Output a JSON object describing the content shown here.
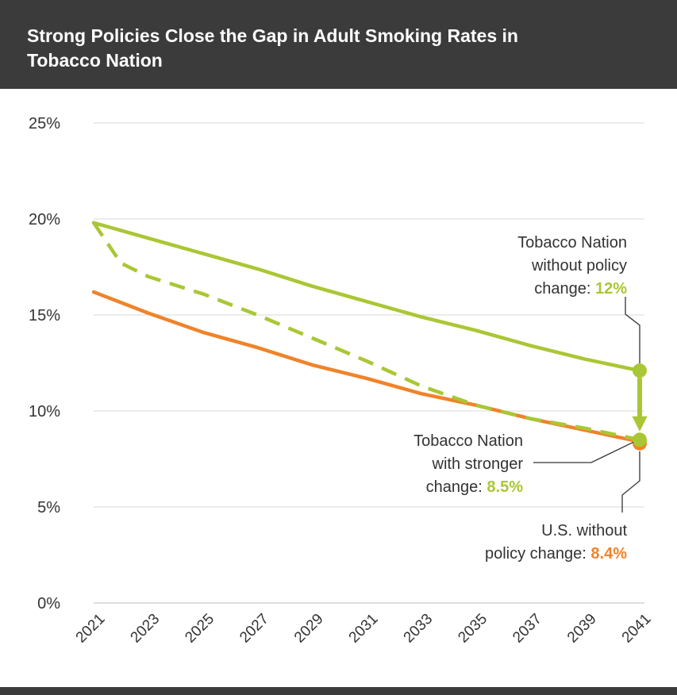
{
  "title": "Strong Policies Close the Gap in Adult Smoking Rates in Tobacco Nation",
  "chart_data": {
    "type": "line",
    "title": "Strong Policies Close the Gap in Adult Smoking Rates in Tobacco Nation",
    "xlabel": "",
    "ylabel": "",
    "x_ticks": [
      "2021",
      "2023",
      "2025",
      "2027",
      "2029",
      "2031",
      "2033",
      "2035",
      "2037",
      "2039",
      "2041"
    ],
    "y_ticks": [
      "0%",
      "5%",
      "10%",
      "15%",
      "20%",
      "25%"
    ],
    "xlim": [
      2021,
      2041
    ],
    "ylim": [
      0,
      25
    ],
    "grid": true,
    "legend": "none",
    "series": [
      {
        "key": "tn_without",
        "color": "#a9c734",
        "dash": "solid",
        "x": [
          2021,
          2023,
          2025,
          2027,
          2029,
          2031,
          2033,
          2035,
          2037,
          2039,
          2041
        ],
        "y": [
          19.8,
          19.0,
          18.2,
          17.4,
          16.5,
          15.7,
          14.9,
          14.2,
          13.4,
          12.7,
          12.1
        ]
      },
      {
        "key": "tn_stronger",
        "color": "#a9c734",
        "dash": "dashed",
        "x": [
          2021,
          2022,
          2023,
          2025,
          2027,
          2029,
          2031,
          2033,
          2035,
          2037,
          2039,
          2041
        ],
        "y": [
          19.8,
          17.7,
          17.0,
          16.1,
          15.0,
          13.8,
          12.6,
          11.3,
          10.3,
          9.6,
          9.1,
          8.5
        ]
      },
      {
        "key": "us_without",
        "color": "#f0832a",
        "dash": "solid",
        "x": [
          2021,
          2023,
          2025,
          2027,
          2029,
          2031,
          2033,
          2035,
          2037,
          2039,
          2041
        ],
        "y": [
          16.2,
          15.1,
          14.1,
          13.3,
          12.4,
          11.7,
          10.9,
          10.3,
          9.6,
          9.0,
          8.4
        ]
      }
    ],
    "annotations": [
      {
        "key": "tn_without",
        "lines": [
          "Tobacco Nation",
          "without policy"
        ],
        "prefix": "change: ",
        "value": "12%",
        "value_color": "#a9c734"
      },
      {
        "key": "tn_stronger",
        "lines": [
          "Tobacco Nation",
          "with stronger"
        ],
        "prefix": "change: ",
        "value": "8.5%",
        "value_color": "#a9c734"
      },
      {
        "key": "us_without",
        "lines": [
          "U.S. without"
        ],
        "prefix": "policy change: ",
        "value": "8.4%",
        "value_color": "#f0832a"
      }
    ]
  }
}
